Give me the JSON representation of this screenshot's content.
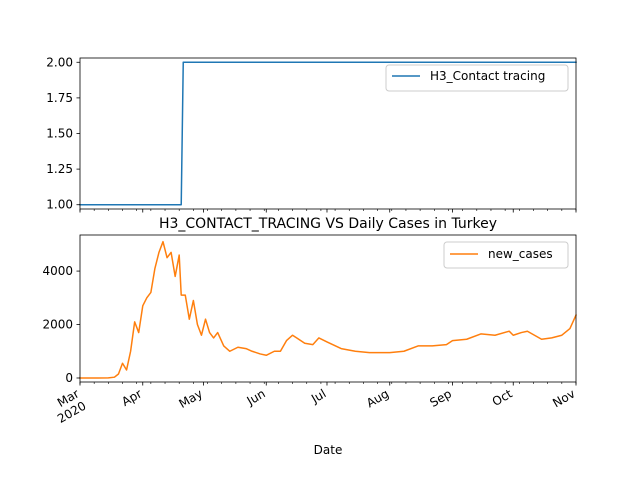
{
  "chart_data": [
    {
      "type": "line",
      "title": "",
      "xlabel": "",
      "ylabel": "",
      "x": [
        "2020-03-01",
        "2020-04-20",
        "2020-04-21",
        "2020-11-01"
      ],
      "series": [
        {
          "name": "H3_Contact tracing",
          "color": "#1f77b4",
          "values": [
            1,
            1,
            2,
            2
          ]
        }
      ],
      "ylim": [
        0.97,
        2.03
      ],
      "yticks": [
        1.0,
        1.25,
        1.5,
        1.75,
        2.0
      ],
      "ytick_labels": [
        "1.00",
        "1.25",
        "1.50",
        "1.75",
        "2.00"
      ],
      "xlim": [
        "2020-03-01",
        "2020-11-01"
      ],
      "grid": false,
      "legend": "upper right"
    },
    {
      "type": "line",
      "title": "H3_CONTACT_TRACING VS Daily Cases in Turkey",
      "xlabel": "Date",
      "ylabel": "",
      "x": [
        "2020-03-01",
        "2020-03-10",
        "2020-03-15",
        "2020-03-18",
        "2020-03-20",
        "2020-03-22",
        "2020-03-24",
        "2020-03-26",
        "2020-03-28",
        "2020-03-30",
        "2020-04-01",
        "2020-04-03",
        "2020-04-05",
        "2020-04-07",
        "2020-04-09",
        "2020-04-11",
        "2020-04-12",
        "2020-04-13",
        "2020-04-15",
        "2020-04-17",
        "2020-04-19",
        "2020-04-20",
        "2020-04-22",
        "2020-04-24",
        "2020-04-26",
        "2020-04-28",
        "2020-04-30",
        "2020-05-02",
        "2020-05-04",
        "2020-05-06",
        "2020-05-08",
        "2020-05-11",
        "2020-05-14",
        "2020-05-18",
        "2020-05-22",
        "2020-05-25",
        "2020-05-29",
        "2020-06-01",
        "2020-06-05",
        "2020-06-08",
        "2020-06-11",
        "2020-06-14",
        "2020-06-16",
        "2020-06-20",
        "2020-06-24",
        "2020-06-27",
        "2020-07-01",
        "2020-07-08",
        "2020-07-15",
        "2020-07-22",
        "2020-07-29",
        "2020-08-01",
        "2020-08-08",
        "2020-08-15",
        "2020-08-22",
        "2020-08-29",
        "2020-09-01",
        "2020-09-08",
        "2020-09-15",
        "2020-09-22",
        "2020-09-29",
        "2020-10-01",
        "2020-10-05",
        "2020-10-08",
        "2020-10-15",
        "2020-10-20",
        "2020-10-25",
        "2020-10-29",
        "2020-11-01"
      ],
      "series": [
        {
          "name": "new_cases",
          "color": "#ff7f0e",
          "values": [
            0,
            0,
            5,
            30,
            150,
            550,
            300,
            1000,
            2100,
            1700,
            2700,
            3000,
            3200,
            4100,
            4700,
            5100,
            4800,
            4500,
            4700,
            3800,
            4600,
            3100,
            3100,
            2200,
            2900,
            2000,
            1600,
            2200,
            1700,
            1500,
            1700,
            1200,
            1000,
            1150,
            1100,
            1000,
            900,
            850,
            1000,
            1000,
            1400,
            1600,
            1500,
            1300,
            1250,
            1500,
            1350,
            1100,
            1000,
            950,
            950,
            950,
            1000,
            1200,
            1200,
            1250,
            1400,
            1450,
            1650,
            1600,
            1750,
            1600,
            1700,
            1750,
            1450,
            1500,
            1600,
            1850,
            2350
          ]
        }
      ],
      "ylim": [
        -150,
        5350
      ],
      "yticks": [
        0,
        2000,
        4000
      ],
      "ytick_labels": [
        "0",
        "2000",
        "4000"
      ],
      "xlim": [
        "2020-03-01",
        "2020-11-01"
      ],
      "xticks": [
        "2020-03-01",
        "2020-04-01",
        "2020-05-01",
        "2020-06-01",
        "2020-07-01",
        "2020-08-01",
        "2020-09-01",
        "2020-10-01",
        "2020-11-01"
      ],
      "xtick_labels": [
        "Mar\n2020",
        "Apr",
        "May",
        "Jun",
        "Jul",
        "Aug",
        "Sep",
        "Oct",
        "Nov"
      ],
      "grid": false,
      "legend": "upper right"
    }
  ]
}
